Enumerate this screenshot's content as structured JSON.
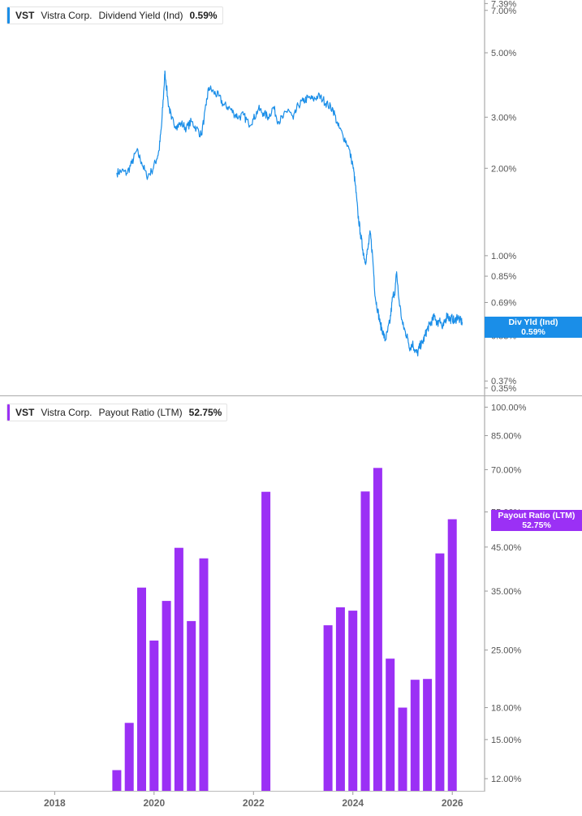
{
  "colors": {
    "yield": "#1a8ee8",
    "payout": "#9b30f5",
    "axis_text": "#555555",
    "grid": "#cccccc"
  },
  "top_legend": {
    "ticker": "VST",
    "company": "Vistra Corp.",
    "metric": "Dividend Yield (Ind)",
    "value": "0.59%"
  },
  "bottom_legend": {
    "ticker": "VST",
    "company": "Vistra Corp.",
    "metric": "Payout Ratio (LTM)",
    "value": "52.75%"
  },
  "top_pill": {
    "label": "Div Yld (Ind)",
    "value": "0.59%"
  },
  "bottom_pill": {
    "label": "Payout Ratio (LTM)",
    "value": "52.75%"
  },
  "chart_data": [
    {
      "type": "line",
      "title": "Vistra Corp. Dividend Yield (Ind)",
      "y_scale": "log",
      "ylim": [
        0.33,
        7.6
      ],
      "xlim": [
        2016.9,
        2026.65
      ],
      "y_ticks": [
        {
          "v": 7.39,
          "label": "7.39%"
        },
        {
          "v": 7.0,
          "label": "7.00%"
        },
        {
          "v": 5.0,
          "label": "5.00%"
        },
        {
          "v": 3.0,
          "label": "3.00%"
        },
        {
          "v": 2.0,
          "label": "2.00%"
        },
        {
          "v": 1.0,
          "label": "1.00%"
        },
        {
          "v": 0.85,
          "label": "0.85%"
        },
        {
          "v": 0.69,
          "label": "0.69%"
        },
        {
          "v": 0.53,
          "label": "0.53%"
        },
        {
          "v": 0.37,
          "label": "0.37%"
        },
        {
          "v": 0.35,
          "label": "0.35%"
        }
      ],
      "series": [
        {
          "name": "Div Yld (Ind)",
          "points": [
            [
              2019.25,
              1.93
            ],
            [
              2019.35,
              1.96
            ],
            [
              2019.45,
              1.92
            ],
            [
              2019.55,
              2.08
            ],
            [
              2019.65,
              2.3
            ],
            [
              2019.75,
              2.1
            ],
            [
              2019.85,
              1.88
            ],
            [
              2019.95,
              1.95
            ],
            [
              2020.05,
              2.15
            ],
            [
              2020.1,
              2.3
            ],
            [
              2020.15,
              2.8
            ],
            [
              2020.2,
              3.8
            ],
            [
              2020.22,
              4.3
            ],
            [
              2020.28,
              3.4
            ],
            [
              2020.35,
              2.95
            ],
            [
              2020.45,
              2.8
            ],
            [
              2020.55,
              2.85
            ],
            [
              2020.65,
              2.75
            ],
            [
              2020.75,
              2.9
            ],
            [
              2020.85,
              2.75
            ],
            [
              2020.95,
              2.6
            ],
            [
              2021.05,
              3.3
            ],
            [
              2021.1,
              3.8
            ],
            [
              2021.2,
              3.65
            ],
            [
              2021.3,
              3.55
            ],
            [
              2021.4,
              3.3
            ],
            [
              2021.5,
              3.25
            ],
            [
              2021.6,
              3.1
            ],
            [
              2021.7,
              3.0
            ],
            [
              2021.8,
              3.05
            ],
            [
              2021.9,
              2.85
            ],
            [
              2022.0,
              2.95
            ],
            [
              2022.1,
              3.2
            ],
            [
              2022.2,
              3.1
            ],
            [
              2022.3,
              3.0
            ],
            [
              2022.4,
              3.25
            ],
            [
              2022.5,
              2.9
            ],
            [
              2022.6,
              3.0
            ],
            [
              2022.7,
              3.2
            ],
            [
              2022.8,
              2.95
            ],
            [
              2022.9,
              3.3
            ],
            [
              2023.0,
              3.4
            ],
            [
              2023.1,
              3.5
            ],
            [
              2023.2,
              3.45
            ],
            [
              2023.3,
              3.55
            ],
            [
              2023.4,
              3.45
            ],
            [
              2023.5,
              3.3
            ],
            [
              2023.6,
              3.2
            ],
            [
              2023.7,
              2.8
            ],
            [
              2023.8,
              2.6
            ],
            [
              2023.9,
              2.4
            ],
            [
              2024.0,
              2.05
            ],
            [
              2024.05,
              1.75
            ],
            [
              2024.1,
              1.4
            ],
            [
              2024.15,
              1.2
            ],
            [
              2024.2,
              1.05
            ],
            [
              2024.25,
              0.95
            ],
            [
              2024.3,
              1.05
            ],
            [
              2024.35,
              1.2
            ],
            [
              2024.4,
              0.98
            ],
            [
              2024.45,
              0.72
            ],
            [
              2024.5,
              0.65
            ],
            [
              2024.55,
              0.58
            ],
            [
              2024.6,
              0.55
            ],
            [
              2024.65,
              0.51
            ],
            [
              2024.7,
              0.55
            ],
            [
              2024.75,
              0.6
            ],
            [
              2024.8,
              0.72
            ],
            [
              2024.85,
              0.76
            ],
            [
              2024.88,
              0.88
            ],
            [
              2024.92,
              0.72
            ],
            [
              2025.0,
              0.58
            ],
            [
              2025.05,
              0.55
            ],
            [
              2025.1,
              0.52
            ],
            [
              2025.15,
              0.48
            ],
            [
              2025.2,
              0.5
            ],
            [
              2025.25,
              0.47
            ],
            [
              2025.3,
              0.46
            ],
            [
              2025.35,
              0.49
            ],
            [
              2025.4,
              0.5
            ],
            [
              2025.45,
              0.53
            ],
            [
              2025.5,
              0.56
            ],
            [
              2025.55,
              0.58
            ],
            [
              2025.6,
              0.6
            ],
            [
              2025.65,
              0.62
            ],
            [
              2025.7,
              0.58
            ],
            [
              2025.75,
              0.61
            ],
            [
              2025.8,
              0.56
            ],
            [
              2025.85,
              0.59
            ],
            [
              2025.9,
              0.63
            ],
            [
              2025.95,
              0.6
            ],
            [
              2026.0,
              0.61
            ],
            [
              2026.05,
              0.59
            ],
            [
              2026.1,
              0.62
            ],
            [
              2026.15,
              0.6
            ],
            [
              2026.2,
              0.59
            ]
          ]
        }
      ]
    },
    {
      "type": "bar",
      "title": "Vistra Corp. Payout Ratio (LTM)",
      "y_scale": "log",
      "ylim": [
        11.3,
        104
      ],
      "xlim": [
        2016.9,
        2026.65
      ],
      "x_ticks": [
        "2018",
        "2020",
        "2022",
        "2024",
        "2026"
      ],
      "x_tick_values": [
        2018,
        2020,
        2022,
        2024,
        2026
      ],
      "y_ticks": [
        {
          "v": 100,
          "label": "100.00%"
        },
        {
          "v": 85,
          "label": "85.00%"
        },
        {
          "v": 70,
          "label": "70.00%"
        },
        {
          "v": 55,
          "label": "55.00%"
        },
        {
          "v": 45,
          "label": "45.00%"
        },
        {
          "v": 35,
          "label": "35.00%"
        },
        {
          "v": 25,
          "label": "25.00%"
        },
        {
          "v": 18,
          "label": "18.00%"
        },
        {
          "v": 15,
          "label": "15.00%"
        },
        {
          "v": 12,
          "label": "12.00%"
        }
      ],
      "series": [
        {
          "name": "Payout Ratio (LTM)",
          "points": [
            [
              2019.25,
              12.6
            ],
            [
              2019.5,
              16.5
            ],
            [
              2019.75,
              35.7
            ],
            [
              2020.0,
              26.4
            ],
            [
              2020.25,
              33.1
            ],
            [
              2020.5,
              44.8
            ],
            [
              2020.75,
              29.5
            ],
            [
              2021.0,
              42.2
            ],
            [
              2022.25,
              61.7
            ],
            [
              2023.5,
              28.8
            ],
            [
              2023.75,
              31.9
            ],
            [
              2024.0,
              31.3
            ],
            [
              2024.25,
              61.8
            ],
            [
              2024.5,
              70.7
            ],
            [
              2024.75,
              23.8
            ],
            [
              2025.0,
              18.0
            ],
            [
              2025.25,
              21.1
            ],
            [
              2025.5,
              21.2
            ],
            [
              2025.75,
              43.4
            ],
            [
              2026.0,
              52.75
            ]
          ]
        }
      ]
    }
  ]
}
